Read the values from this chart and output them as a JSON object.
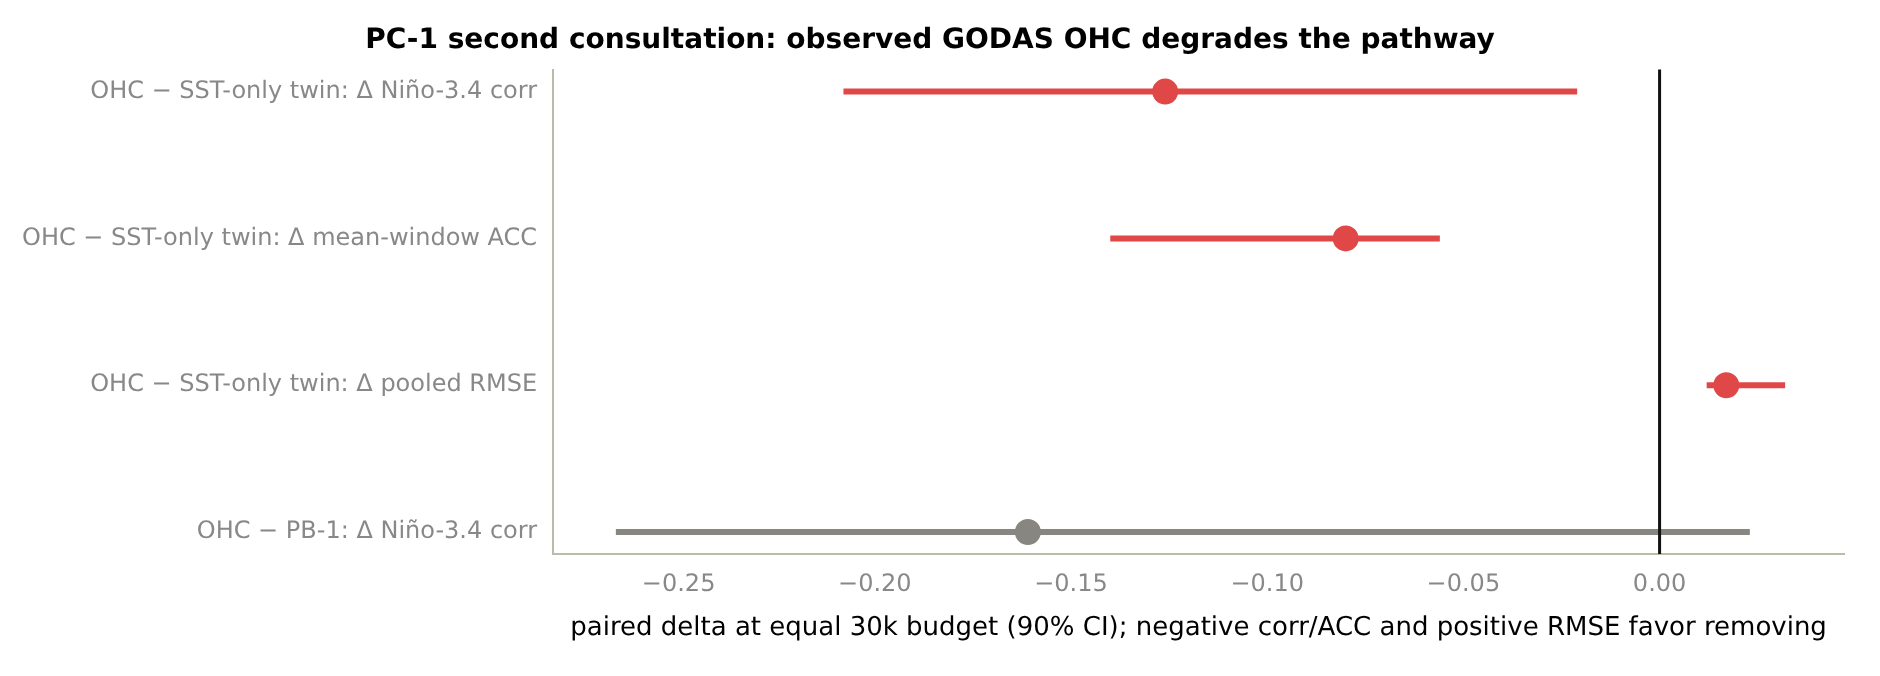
{
  "chart_data": {
    "type": "scatter",
    "orientation": "horizontal",
    "title": "PC-1 second consultation: observed GODAS OHC degrades the pathway",
    "xlabel": "paired delta at equal 30k budget (90% CI); negative corr/ACC and positive RMSE favor removing",
    "categories": [
      "OHC − SST-only twin: Δ Niño-3.4 corr",
      "OHC − SST-only twin: Δ mean-window ACC",
      "OHC − SST-only twin: Δ pooled RMSE",
      "OHC − PB-1: Δ Niño-3.4 corr"
    ],
    "values": [
      -0.126,
      -0.08,
      0.017,
      -0.161
    ],
    "errors": [
      [
        -0.208,
        -0.021
      ],
      [
        -0.14,
        -0.056
      ],
      [
        0.012,
        0.032
      ],
      [
        -0.266,
        0.023
      ]
    ],
    "colors": [
      "#e04848",
      "#e04848",
      "#e04848",
      "#878681"
    ],
    "xlim": [
      -0.282,
      0.047
    ],
    "xticks": [
      {
        "value": -0.25,
        "label": "−0.25"
      },
      {
        "value": -0.2,
        "label": "−0.20"
      },
      {
        "value": -0.15,
        "label": "−0.15"
      },
      {
        "value": -0.1,
        "label": "−0.10"
      },
      {
        "value": -0.05,
        "label": "−0.05"
      },
      {
        "value": 0,
        "label": "0.00"
      }
    ],
    "ref_lines": [
      {
        "axis": "x",
        "value": 0,
        "color": "#111111"
      }
    ],
    "grid": false,
    "legend": false,
    "marker": "circle"
  }
}
